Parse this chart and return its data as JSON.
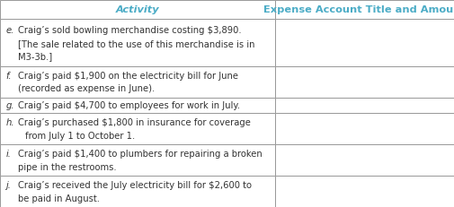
{
  "header": [
    "Activity",
    "Expense Account Title and Amount"
  ],
  "header_bg": "#FFFFFF",
  "header_text_color": "#4BACC6",
  "header_border_color": "#888888",
  "rows": [
    {
      "label": "e.",
      "lines": [
        "Craig’s sold bowling merchandise costing $3,890.",
        "[The sale related to the use of this merchandise is in",
        "M3-3b.]"
      ]
    },
    {
      "label": "f.",
      "lines": [
        "Craig’s paid $1,900 on the electricity bill for June",
        "(recorded as expense in June)."
      ]
    },
    {
      "label": "g.",
      "lines": [
        "Craig’s paid $4,700 to employees for work in July."
      ]
    },
    {
      "label": "h.",
      "lines": [
        "Craig’s purchased $1,800 in insurance for coverage",
        "from July 1 to October 1."
      ]
    },
    {
      "label": "i.",
      "lines": [
        "Craig’s paid $1,400 to plumbers for repairing a broken",
        "pipe in the restrooms."
      ]
    },
    {
      "label": "j.",
      "lines": [
        "Craig’s received the July electricity bill for $2,600 to",
        "be paid in August."
      ]
    }
  ],
  "col_split": 0.605,
  "bg_color": "#FFFFFF",
  "border_color": "#999999",
  "text_color": "#333333",
  "body_fontsize": 7.2,
  "header_fontsize": 8.2,
  "fig_width": 5.05,
  "fig_height": 2.31,
  "dpi": 100
}
